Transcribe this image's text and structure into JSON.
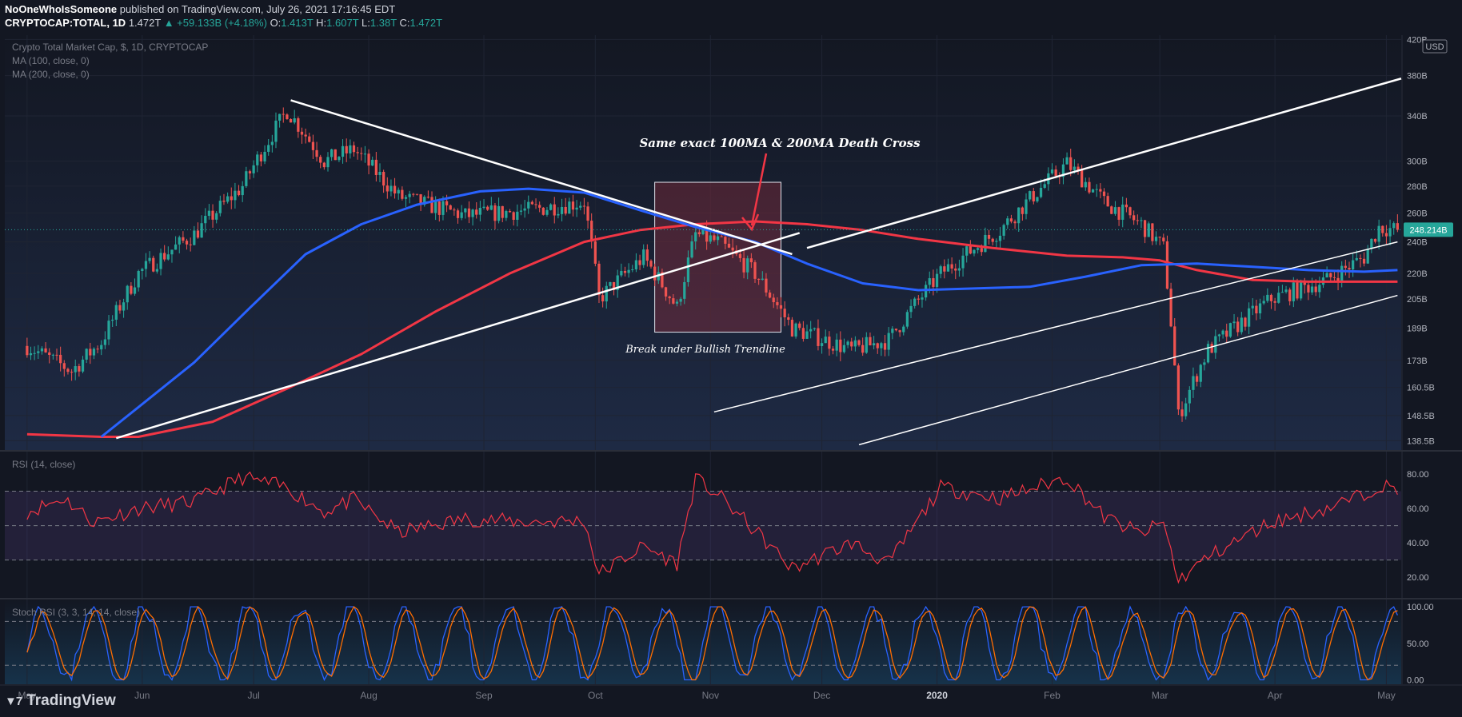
{
  "header": {
    "author": "NoOneWhoIsSomeone",
    "published_text": "published on TradingView.com, July 26, 2021 17:16:45 EDT",
    "symbol": "CRYPTOCAP:TOTAL, 1D",
    "last": "1.472T",
    "change": "▲ +59.133B (+4.18%)",
    "o_label": "O:",
    "o_value": "1.413T",
    "h_label": "H:",
    "h_value": "1.607T",
    "l_label": "L:",
    "l_value": "1.38T",
    "c_label": "C:",
    "c_value": "1.472T"
  },
  "legend": {
    "series_title": "Crypto Total Market Cap, $, 1D, CRYPTOCAP",
    "ma100": "MA (100, close, 0)",
    "ma200": "MA (200, close, 0)",
    "rsi": "RSI (14, close)",
    "stoch": "Stoch RSI (3, 3, 14, 14, close)"
  },
  "annotations": {
    "death_cross": "Same exact 100MA & 200MA Death Cross",
    "break_trendline": "Break under Bullish Trendline"
  },
  "colors": {
    "background": "#131722",
    "up": "#26a69a",
    "down": "#ef5350",
    "ma100": "#2962ff",
    "ma200": "#f23645",
    "rsi": "#f23645",
    "stoch_k": "#2962ff",
    "stoch_d": "#ff6d00",
    "trend": "#ffffff"
  },
  "branding": {
    "name": "TradingView"
  },
  "chart_data": {
    "type": "candlestick",
    "currency": "USD",
    "last_price_label": "248.214B",
    "y_ticks": [
      "420B",
      "380B",
      "340B",
      "300B",
      "280B",
      "260B",
      "240B",
      "220B",
      "205B",
      "189B",
      "173B",
      "160.5B",
      "148.5B",
      "138.5B"
    ],
    "x_ticks": [
      "May",
      "Jun",
      "Jul",
      "Aug",
      "Sep",
      "Oct",
      "Nov",
      "Dec",
      "2020",
      "Feb",
      "Mar",
      "Apr",
      "May"
    ],
    "x_tick_days": [
      0,
      31,
      61,
      92,
      123,
      153,
      184,
      214,
      245,
      276,
      305,
      336,
      366
    ],
    "ohlc_anchor_days": [
      0,
      12,
      20,
      30,
      45,
      58,
      70,
      80,
      88,
      100,
      118,
      135,
      150,
      154,
      166,
      175,
      180,
      186,
      196,
      206,
      222,
      232,
      246,
      262,
      280,
      290,
      300,
      306,
      310,
      318,
      335,
      350,
      360,
      364,
      369
    ],
    "close_anchors": [
      180,
      168,
      182,
      220,
      245,
      280,
      345,
      300,
      310,
      272,
      258,
      262,
      268,
      205,
      230,
      200,
      245,
      240,
      220,
      189,
      178,
      183,
      220,
      248,
      298,
      268,
      252,
      236,
      148,
      178,
      205,
      216,
      230,
      250,
      248
    ],
    "ma100_days": [
      20,
      30,
      45,
      60,
      75,
      90,
      105,
      122,
      135,
      150,
      165,
      180,
      196,
      210,
      225,
      240,
      255,
      270,
      285,
      300,
      315,
      330,
      345,
      360,
      369
    ],
    "ma100": [
      140,
      152,
      172,
      200,
      232,
      252,
      266,
      276,
      278,
      275,
      262,
      250,
      240,
      226,
      214,
      210,
      211,
      212,
      218,
      225,
      226,
      224,
      222,
      221,
      222
    ],
    "ma200_days": [
      0,
      20,
      30,
      50,
      70,
      90,
      110,
      130,
      150,
      165,
      180,
      196,
      210,
      225,
      240,
      260,
      280,
      295,
      305,
      315,
      330,
      345,
      360,
      369
    ],
    "ma200": [
      141,
      140,
      140,
      146,
      160,
      176,
      198,
      220,
      240,
      248,
      252,
      254,
      252,
      248,
      242,
      236,
      231,
      230,
      228,
      222,
      216,
      215,
      215,
      215
    ],
    "trendlines": [
      {
        "name": "bullish-trendline",
        "from": [
          24,
          139.5
        ],
        "to": [
          208,
          246
        ]
      },
      {
        "name": "descending-trendline",
        "from": [
          71,
          355
        ],
        "to": [
          206,
          232
        ]
      },
      {
        "name": "upper-channel",
        "from": [
          210,
          236
        ],
        "to": [
          370,
          377
        ]
      },
      {
        "name": "middle-channel",
        "from": [
          185,
          150
        ],
        "to": [
          369,
          240
        ]
      },
      {
        "name": "lower-channel",
        "from": [
          224,
          137
        ],
        "to": [
          369,
          207
        ]
      }
    ],
    "highlight_box": {
      "from_day": 169,
      "to_day": 203,
      "top": 283,
      "bottom": 187
    },
    "rsi": {
      "ticks": [
        "80.00",
        "60.00",
        "40.00",
        "20.00"
      ],
      "bands": [
        70,
        50,
        30
      ],
      "anchor_days": [
        0,
        10,
        18,
        30,
        45,
        58,
        70,
        80,
        88,
        100,
        118,
        135,
        150,
        154,
        166,
        175,
        180,
        186,
        196,
        206,
        222,
        232,
        246,
        262,
        280,
        290,
        300,
        306,
        310,
        318,
        335,
        350,
        360,
        364,
        369
      ],
      "values": [
        58,
        66,
        52,
        60,
        64,
        78,
        72,
        58,
        65,
        46,
        54,
        52,
        53,
        22,
        38,
        28,
        77,
        68,
        47,
        25,
        40,
        28,
        72,
        66,
        78,
        55,
        45,
        52,
        18,
        32,
        52,
        60,
        68,
        74,
        70
      ]
    },
    "stoch_rsi": {
      "ticks": [
        "100.00",
        "50.00",
        "0.00"
      ],
      "bands": [
        80,
        20
      ],
      "k_cycle_days": 14,
      "k_phase": 0
    }
  }
}
